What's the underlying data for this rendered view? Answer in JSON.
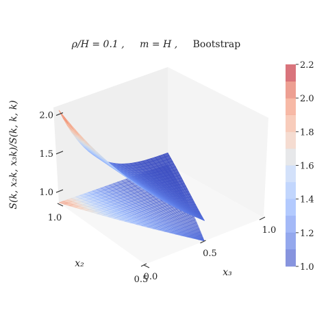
{
  "chart_data": {
    "type": "surface3d",
    "title_parts": [
      "ρ/H = 0.1 ,",
      "m = H ,",
      "Bootstrap"
    ],
    "xlabel": "x₃",
    "ylabel": "x₂",
    "zlabel": "S(k, x₂k, x₃k)/S(k, k, k)",
    "xlim": [
      0.0,
      1.0
    ],
    "ylim": [
      0.5,
      1.0
    ],
    "zlim": [
      0.85,
      2.2
    ],
    "x_ticks": [
      "0.0",
      "0.5",
      "1.0"
    ],
    "y_ticks": [
      "0.5",
      "1.0"
    ],
    "z_ticks": [
      "1.0",
      "1.5",
      "2.0"
    ],
    "colormap": "coolwarm",
    "colorbar": {
      "min": 1.0,
      "max": 2.2,
      "levels": 12,
      "ticks": [
        "1.0",
        "1.2",
        "1.4",
        "1.6",
        "1.8",
        "2.0",
        "2.2"
      ]
    },
    "surface_samples": [
      {
        "x3": 0.0,
        "x2": 1.0,
        "value": 2.1
      },
      {
        "x3": 0.1,
        "x2": 1.0,
        "value": 1.9
      },
      {
        "x3": 0.2,
        "x2": 1.0,
        "value": 1.7
      },
      {
        "x3": 0.3,
        "x2": 1.0,
        "value": 1.5
      },
      {
        "x3": 0.4,
        "x2": 1.0,
        "value": 1.35
      },
      {
        "x3": 0.5,
        "x2": 1.0,
        "value": 1.22
      },
      {
        "x3": 0.6,
        "x2": 1.0,
        "value": 1.12
      },
      {
        "x3": 0.7,
        "x2": 1.0,
        "value": 1.06
      },
      {
        "x3": 0.8,
        "x2": 1.0,
        "value": 1.03
      },
      {
        "x3": 0.9,
        "x2": 1.0,
        "value": 1.01
      },
      {
        "x3": 1.0,
        "x2": 1.0,
        "value": 1.0
      },
      {
        "x3": 0.5,
        "x2": 0.5,
        "value": 1.05
      }
    ]
  }
}
